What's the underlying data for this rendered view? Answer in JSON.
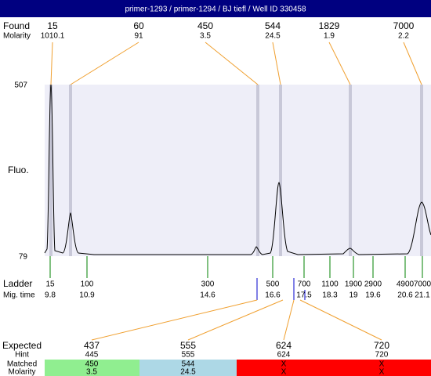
{
  "title": "primer-1293 / primer-1294 / BJ tiefl / Well ID 330458",
  "found": {
    "label": "Found",
    "sizes": [
      15,
      60,
      450,
      544,
      1829,
      7000
    ],
    "molarity_label": "Molarity",
    "molarity": [
      1010.1,
      91,
      3.5,
      24.5,
      1.9,
      2.2
    ]
  },
  "plot": {
    "y_max": 507,
    "y_min": 79,
    "y_label": "Fluo."
  },
  "ladder": {
    "label": "Ladder",
    "sizes": [
      15,
      100,
      300,
      500,
      700,
      1100,
      1900,
      2900,
      4900,
      7000
    ],
    "mig_label": "Mig. time",
    "mig_times": [
      9.8,
      10.9,
      14.6,
      16.6,
      17.5,
      18.3,
      19,
      19.6,
      20.6,
      21.1
    ]
  },
  "expected": {
    "label": "Expected",
    "values": [
      437,
      555,
      624,
      720
    ],
    "hint_label": "Hint",
    "hint": [
      445,
      555,
      624,
      720
    ],
    "matched_label": "Matched",
    "matched": [
      450,
      544,
      "X",
      "X"
    ],
    "molarity_label": "Molarity",
    "molarity": [
      3.5,
      24.5,
      "X",
      "X"
    ]
  }
}
